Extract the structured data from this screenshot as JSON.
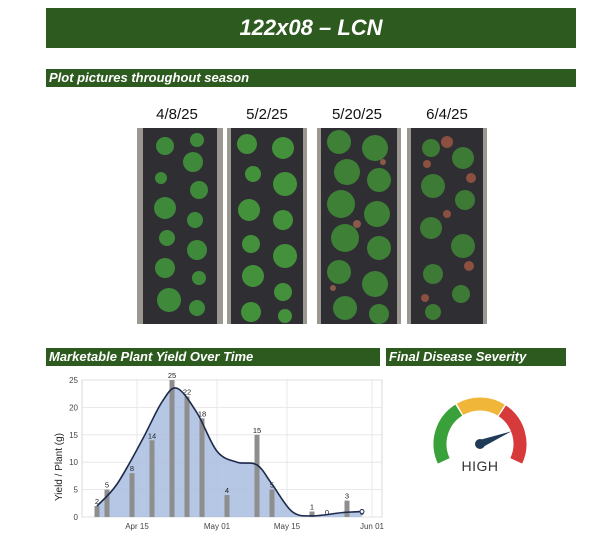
{
  "header": {
    "title": "122x08 – LCN"
  },
  "sections": {
    "pictures": "Plot pictures throughout season",
    "yield": "Marketable Plant Yield Over Time",
    "disease": "Final Disease Severity Rating"
  },
  "photos": [
    {
      "date": "4/8/25"
    },
    {
      "date": "5/2/25"
    },
    {
      "date": "5/20/25"
    },
    {
      "date": "6/4/25"
    }
  ],
  "chart_data": {
    "type": "bar",
    "ylabel": "Yield / Plant (g)",
    "xlabel": "",
    "ylim": [
      0,
      25
    ],
    "yticks": [
      0,
      5,
      10,
      15,
      20,
      25
    ],
    "xticks": [
      {
        "date": "2025-04-15",
        "label": "Apr 15"
      },
      {
        "date": "2025-05-01",
        "label": "May 01"
      },
      {
        "date": "2025-05-15",
        "label": "May 15"
      },
      {
        "date": "2025-06-01",
        "label": "Jun 01"
      }
    ],
    "xlim": [
      "2025-04-04",
      "2025-06-03"
    ],
    "grid": true,
    "bars": [
      {
        "date": "2025-04-07",
        "value": 2,
        "label": "2"
      },
      {
        "date": "2025-04-09",
        "value": 5,
        "label": "5"
      },
      {
        "date": "2025-04-14",
        "value": 8,
        "label": "8"
      },
      {
        "date": "2025-04-18",
        "value": 14,
        "label": "14"
      },
      {
        "date": "2025-04-22",
        "value": 25,
        "label": "25"
      },
      {
        "date": "2025-04-25",
        "value": 22,
        "label": "22"
      },
      {
        "date": "2025-04-28",
        "value": 18,
        "label": "18"
      },
      {
        "date": "2025-05-03",
        "value": 4,
        "label": "4"
      },
      {
        "date": "2025-05-09",
        "value": 15,
        "label": "15"
      },
      {
        "date": "2025-05-12",
        "value": 5,
        "label": "5"
      },
      {
        "date": "2025-05-16",
        "value": 0,
        "label": ""
      },
      {
        "date": "2025-05-20",
        "value": 1,
        "label": "1"
      },
      {
        "date": "2025-05-23",
        "value": 0,
        "label": "0"
      },
      {
        "date": "2025-05-27",
        "value": 3,
        "label": "3"
      },
      {
        "date": "2025-05-30",
        "value": 0,
        "label": "0"
      }
    ],
    "smooth": [
      {
        "date": "2025-04-07",
        "value": 2
      },
      {
        "date": "2025-04-11",
        "value": 6
      },
      {
        "date": "2025-04-16",
        "value": 14
      },
      {
        "date": "2025-04-20",
        "value": 21
      },
      {
        "date": "2025-04-23",
        "value": 23.5
      },
      {
        "date": "2025-04-27",
        "value": 19
      },
      {
        "date": "2025-05-01",
        "value": 12
      },
      {
        "date": "2025-05-05",
        "value": 10
      },
      {
        "date": "2025-05-09",
        "value": 9.5
      },
      {
        "date": "2025-05-12",
        "value": 6
      },
      {
        "date": "2025-05-16",
        "value": 1
      },
      {
        "date": "2025-05-20",
        "value": 0.2
      },
      {
        "date": "2025-05-26",
        "value": 0.8
      },
      {
        "date": "2025-05-30",
        "value": 1
      }
    ],
    "colors": {
      "bar": "#8e8e8e",
      "area": "#a9bde0",
      "line": "#1e2a4a"
    }
  },
  "gauge": {
    "rating": "HIGH",
    "colors": {
      "low": "#3aa13a",
      "mid": "#f0b63a",
      "high": "#d63a3a",
      "needle": "#1f3b57"
    }
  }
}
